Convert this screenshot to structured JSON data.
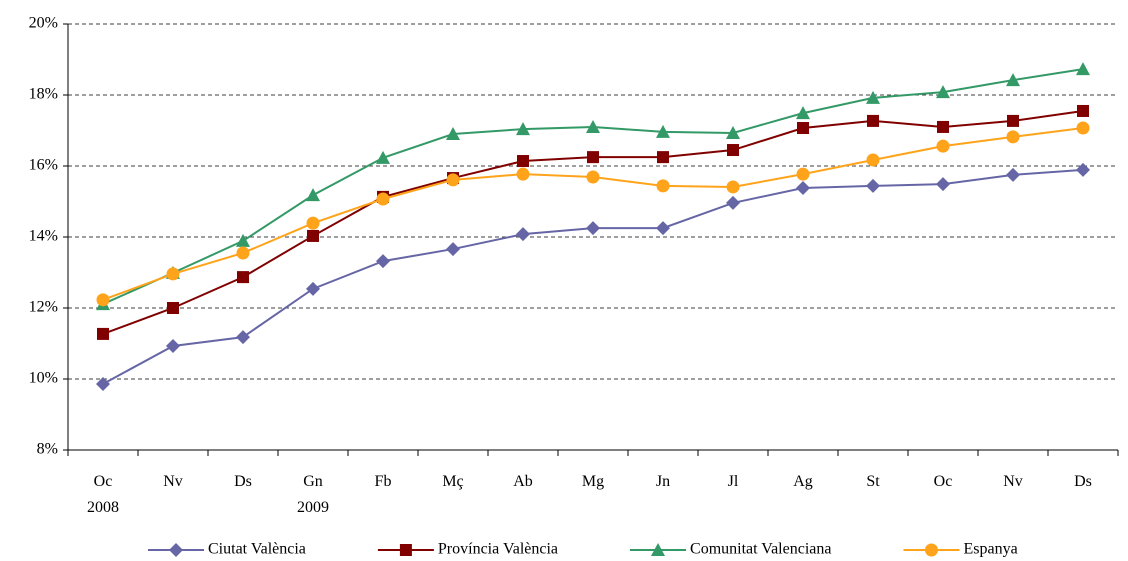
{
  "chart_data": {
    "type": "line",
    "categories": [
      "Oc\n2008",
      "Nv",
      "Ds",
      "Gn\n2009",
      "Fb",
      "Mç",
      "Ab",
      "Mg",
      "Jn",
      "Jl",
      "Ag",
      "St",
      "Oc",
      "Nv",
      "Ds"
    ],
    "series": [
      {
        "name": "Ciutat València",
        "color": "#6666a6",
        "marker": "diamond",
        "values": [
          9.86,
          10.93,
          11.18,
          12.54,
          13.32,
          13.66,
          14.08,
          14.25,
          14.25,
          14.96,
          15.38,
          15.44,
          15.49,
          15.75,
          15.89
        ]
      },
      {
        "name": "Província València",
        "color": "#800000",
        "marker": "square",
        "values": [
          11.27,
          12.0,
          12.87,
          14.03,
          15.13,
          15.66,
          16.14,
          16.25,
          16.25,
          16.45,
          17.07,
          17.27,
          17.1,
          17.27,
          17.55
        ]
      },
      {
        "name": "Comunitat Valenciana",
        "color": "#339966",
        "marker": "triangle",
        "values": [
          12.11,
          12.99,
          13.89,
          15.18,
          16.23,
          16.9,
          17.04,
          17.1,
          16.96,
          16.93,
          17.49,
          17.92,
          18.08,
          18.42,
          18.73
        ]
      },
      {
        "name": "Espanya",
        "color": "#ffa31a",
        "marker": "circle",
        "values": [
          12.23,
          12.96,
          13.55,
          14.39,
          15.07,
          15.61,
          15.77,
          15.69,
          15.44,
          15.41,
          15.77,
          16.17,
          16.56,
          16.82,
          17.07
        ]
      }
    ],
    "ylim": [
      8,
      20
    ],
    "yticks": [
      {
        "value": 8,
        "label": "8%"
      },
      {
        "value": 10,
        "label": "10%"
      },
      {
        "value": 12,
        "label": "12%"
      },
      {
        "value": 14,
        "label": "14%"
      },
      {
        "value": 16,
        "label": "16%"
      },
      {
        "value": 18,
        "label": "18%"
      },
      {
        "value": 20,
        "label": "20%"
      }
    ],
    "grid": true,
    "legend": "bottom"
  }
}
